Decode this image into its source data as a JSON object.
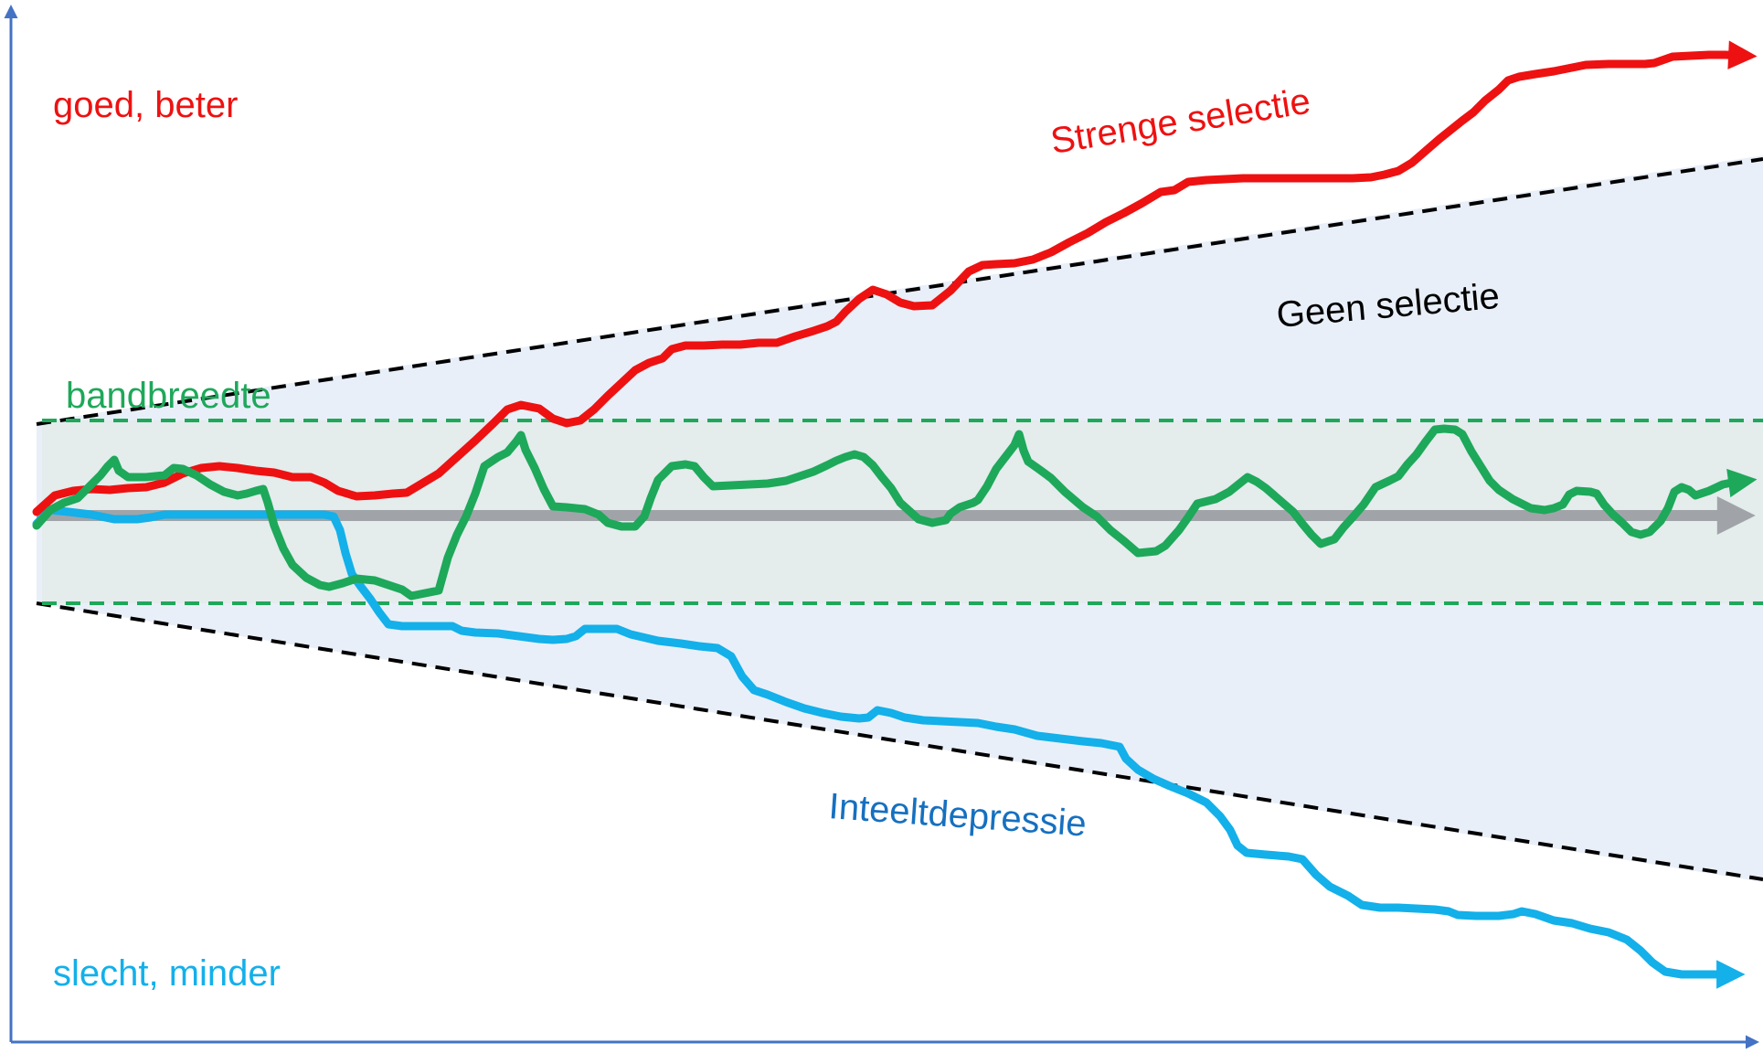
{
  "labels": {
    "good": "goed, beter",
    "bad": "slecht, minder",
    "bandwidth": "bandbreedte",
    "strict_selection": "Strenge selectie",
    "no_selection": "Geen selectie",
    "inbreeding": "Inteeltdepressie"
  },
  "colors": {
    "axis": "#4472c4",
    "red": "#ee1111",
    "green": "#1ea85a",
    "cyan": "#13b0ea",
    "blue_text": "#1670c0",
    "gray": "#a0a4a8",
    "cone_fill": "#e9eff8",
    "band_fill": "#e4ecec",
    "dash_black": "#000000",
    "dash_green": "#1ea85a"
  }
}
